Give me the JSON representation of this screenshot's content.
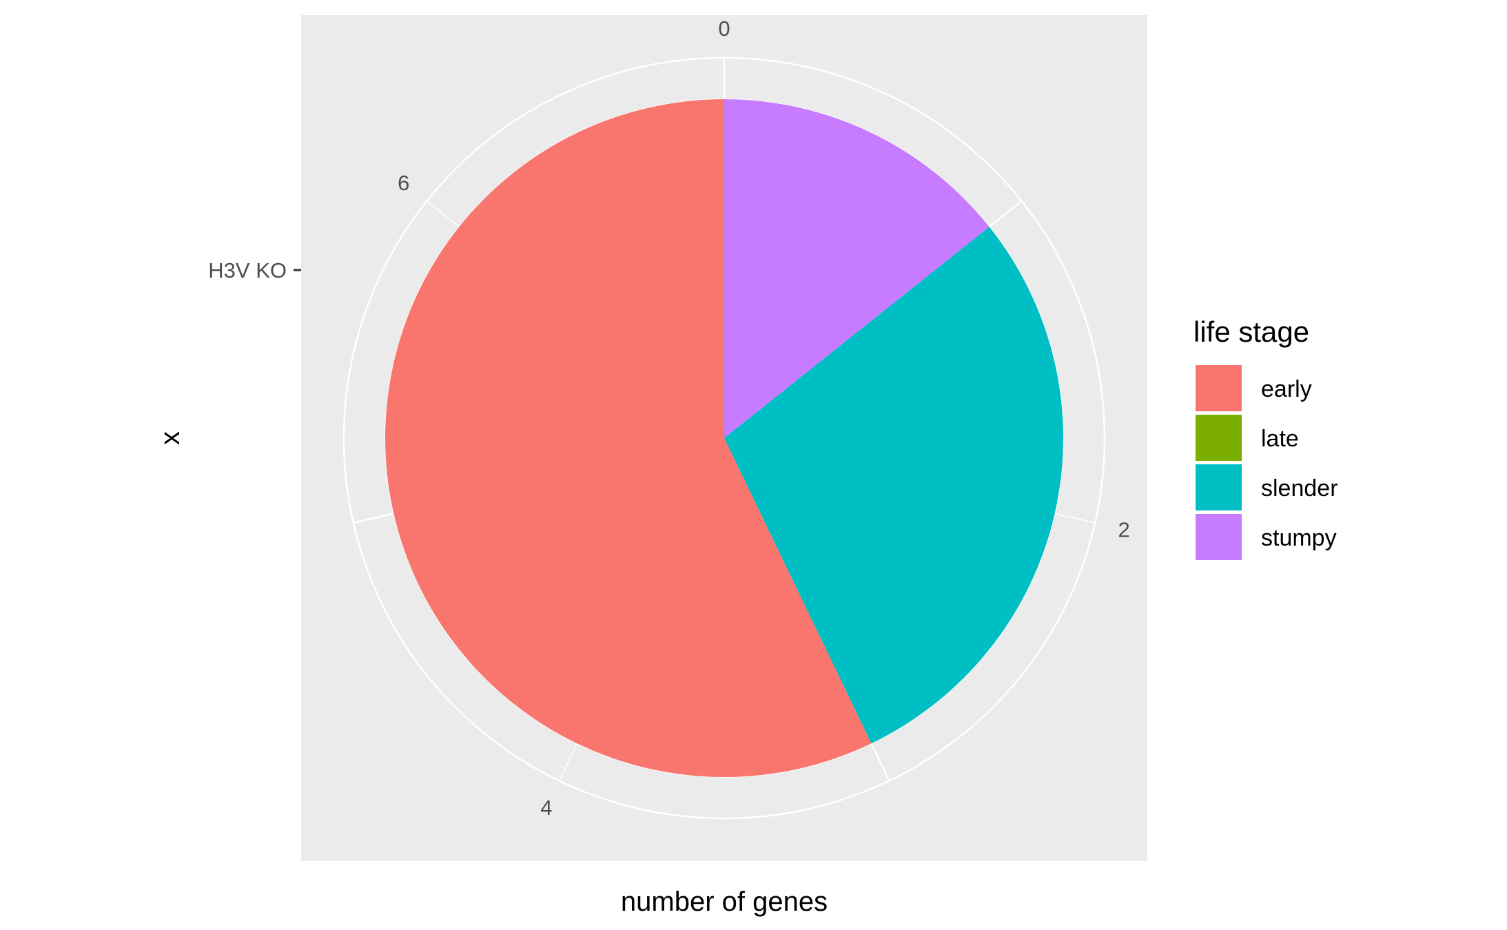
{
  "chart_data": {
    "type": "pie",
    "coord": "polar",
    "xlabel": "number of genes",
    "ylabel": "x",
    "category_label": "H3V KO",
    "theta_range": [
      0,
      7
    ],
    "theta_ticks": [
      "0",
      "2",
      "4",
      "6"
    ],
    "theta_tick_values": [
      0,
      2,
      4,
      6
    ],
    "slices": [
      {
        "label": "stumpy",
        "value": 1,
        "color": "#C77CFF"
      },
      {
        "label": "slender",
        "value": 2,
        "color": "#00BFC4"
      },
      {
        "label": "late",
        "value": 0,
        "color": "#7CAE00"
      },
      {
        "label": "early",
        "value": 4,
        "color": "#F8766D"
      }
    ],
    "legend": {
      "title": "life stage",
      "position": "right",
      "entries": [
        {
          "label": "early",
          "color": "#F8766D"
        },
        {
          "label": "late",
          "color": "#7CAE00"
        },
        {
          "label": "slender",
          "color": "#00BFC4"
        },
        {
          "label": "stumpy",
          "color": "#C77CFF"
        }
      ]
    },
    "panel_background": "#EBEBEB",
    "grid": true,
    "grid_color": "#FFFFFF"
  }
}
